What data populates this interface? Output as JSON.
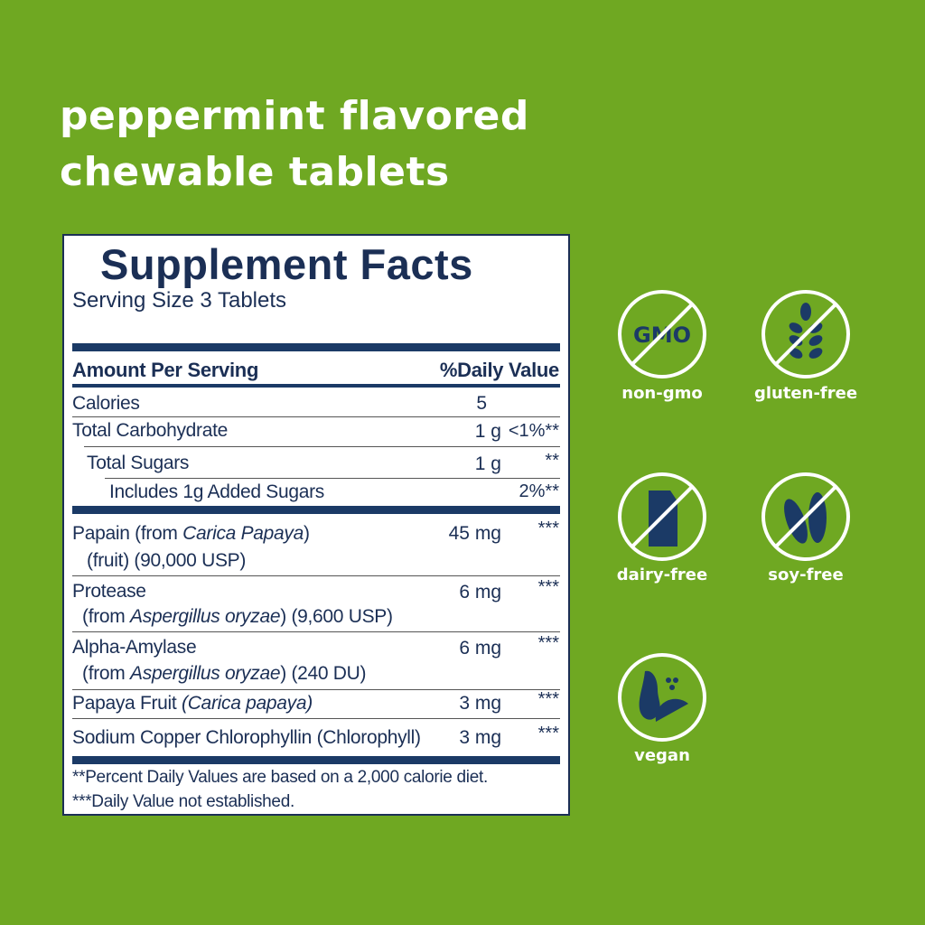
{
  "headline": {
    "line1": "peppermint flavored",
    "line2": "chewable tablets"
  },
  "facts": {
    "title": "Supplement Facts",
    "serving": "Serving Size 3 Tablets",
    "col_amount": "Amount Per Serving",
    "col_dv": "%Daily Value",
    "rows": [
      {
        "name": "Calories",
        "amount": "5",
        "dv": ""
      },
      {
        "name": "Total Carbohydrate",
        "amount": "1 g",
        "dv": "<1%**"
      },
      {
        "name": "Total Sugars",
        "amount": "1 g",
        "dv": "**"
      },
      {
        "name": "Includes 1g Added Sugars",
        "amount": "",
        "dv": "2%**"
      },
      {
        "name_a": "Papain (from ",
        "name_i": "Carica Papaya",
        "name_b": ")",
        "line2": "(fruit) (90,000 USP)",
        "amount": "45 mg",
        "dv": "***"
      },
      {
        "name": "Protease",
        "line2_a": "(from ",
        "line2_i": "Aspergillus oryzae",
        "line2_b": ") (9,600 USP)",
        "amount": "6 mg",
        "dv": "***"
      },
      {
        "name": "Alpha-Amylase",
        "line2_a": "(from ",
        "line2_i": "Aspergillus oryzae",
        "line2_b": ") (240 DU)",
        "amount": "6 mg",
        "dv": "***"
      },
      {
        "name_a": "Papaya Fruit ",
        "name_i": "(Carica papaya)",
        "amount": "3 mg",
        "dv": "***"
      },
      {
        "name": "Sodium Copper Chlorophyllin (Chlorophyll)",
        "amount": "3 mg",
        "dv": "***"
      }
    ],
    "footnote1": "**Percent Daily Values are based on a 2,000 calorie diet.",
    "footnote2": "***Daily Value not established."
  },
  "badges": [
    {
      "label": "non-gmo",
      "icon": "gmo-text",
      "glyph": "GMO"
    },
    {
      "label": "gluten-free",
      "icon": "wheat-icon"
    },
    {
      "label": "dairy-free",
      "icon": "milk-carton-icon"
    },
    {
      "label": "soy-free",
      "icon": "soybean-icon"
    },
    {
      "label": "vegan",
      "icon": "fruit-icon"
    }
  ],
  "colors": {
    "background": "#6fa822",
    "navy": "#1b3a66",
    "white": "#ffffff"
  }
}
